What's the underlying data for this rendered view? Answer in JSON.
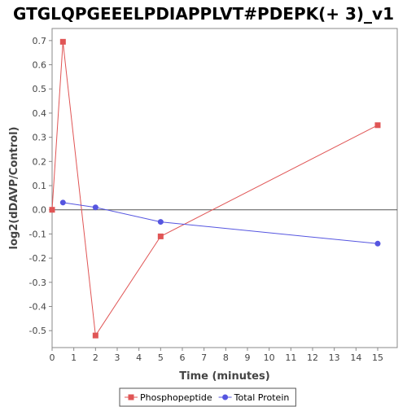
{
  "chart_data": {
    "type": "line",
    "title": "GTGLQPGEEELPDIAPPLVT#PDEPK(+ 3)_v1",
    "xlabel": "Time (minutes)",
    "ylabel": "log2(dDAVP/Control)",
    "xlim": [
      0,
      15.9
    ],
    "ylim": [
      -0.57,
      0.75
    ],
    "xticks": [
      "0",
      "1",
      "2",
      "3",
      "4",
      "5",
      "6",
      "7",
      "8",
      "9",
      "10",
      "11",
      "12",
      "13",
      "14",
      "15"
    ],
    "yticks": [
      "-0.5",
      "-0.4",
      "-0.3",
      "-0.2",
      "-0.1",
      "0.0",
      "0.1",
      "0.2",
      "0.3",
      "0.4",
      "0.5",
      "0.6",
      "0.7"
    ],
    "grid": false,
    "legend_position": "bottom",
    "series": [
      {
        "name": "Phosphopeptide",
        "color": "#e05555",
        "marker": "square",
        "x": [
          0,
          0.5,
          2,
          5,
          15
        ],
        "y": [
          0,
          0.695,
          -0.52,
          -0.11,
          0.35
        ]
      },
      {
        "name": "Total Protein",
        "color": "#5555e0",
        "marker": "circle",
        "x": [
          0.5,
          2,
          5,
          15
        ],
        "y": [
          0.03,
          0.01,
          -0.05,
          -0.14
        ]
      }
    ]
  }
}
